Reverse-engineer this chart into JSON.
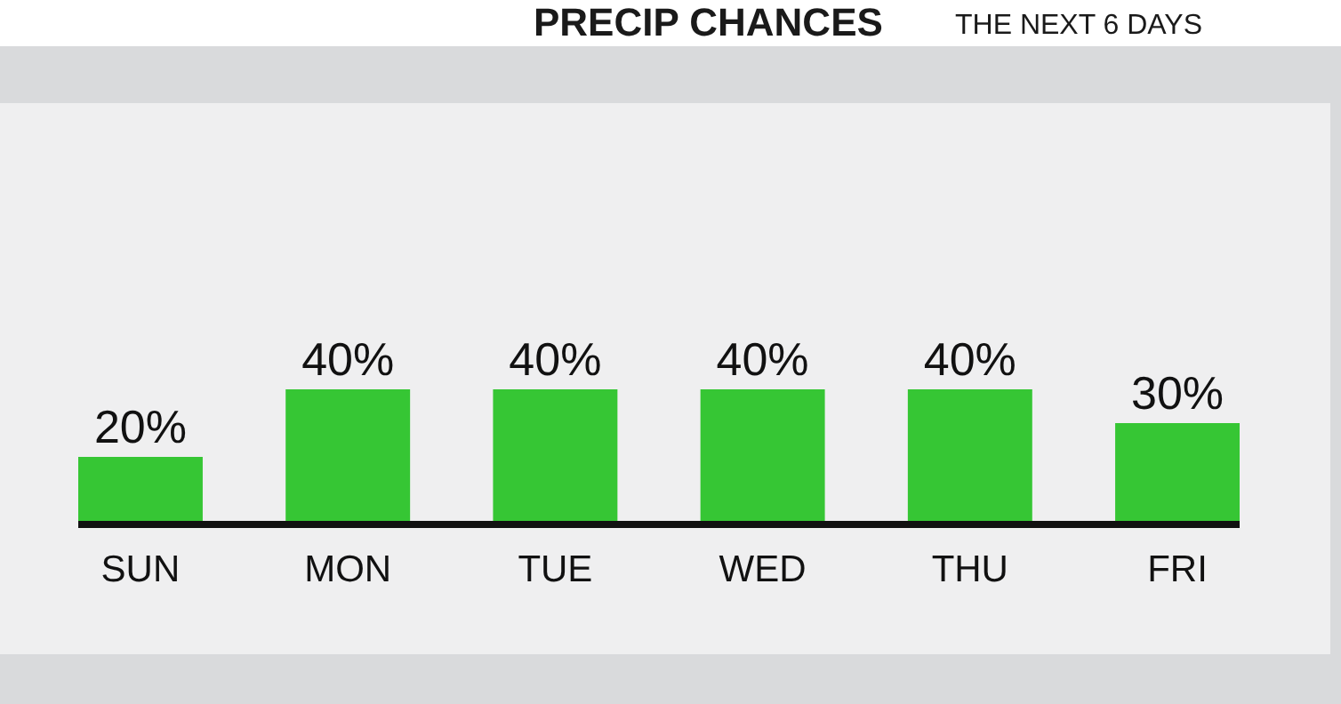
{
  "chart_data": {
    "type": "bar",
    "title": "PRECIP CHANCES",
    "subtitle": "THE NEXT 6 DAYS",
    "categories": [
      "SUN",
      "MON",
      "TUE",
      "WED",
      "THU",
      "FRI"
    ],
    "values": [
      20,
      40,
      40,
      40,
      40,
      30
    ],
    "value_labels": [
      "20%",
      "40%",
      "40%",
      "40%",
      "40%",
      "30%"
    ],
    "color": "#36c634"
  }
}
